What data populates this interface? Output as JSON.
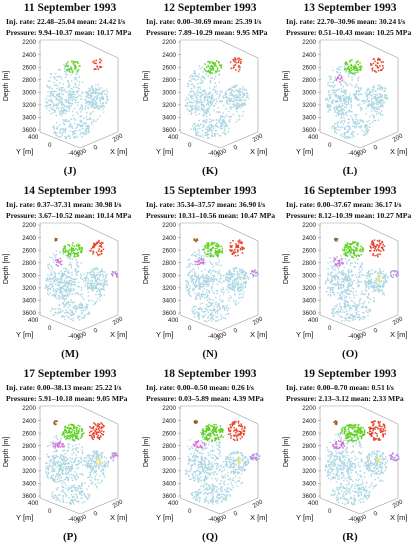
{
  "axis_labels": {
    "depth": "Depth [m]",
    "y": "Y [m]",
    "x": "X [m]"
  },
  "depth_ticks": [
    "2200",
    "2400",
    "2600",
    "2800",
    "3000",
    "3200",
    "3400",
    "3600"
  ],
  "y_ticks": [
    "400",
    "200",
    "0",
    "-200",
    "-400"
  ],
  "x_ticks": [
    "-200",
    "0",
    "200"
  ],
  "rate_label": "Inj. rate:",
  "pressure_label": "Pressure:",
  "mean_label": "mean:",
  "colors": {
    "main_cloud": "#a9d5e3",
    "green_cluster": "#5fd21e",
    "red_cluster": "#e8412a",
    "magenta_cluster": "#d96fd6",
    "purple_cluster": "#b58de0",
    "yellow_cluster": "#f1e95a",
    "orange_cluster": "#9a5b21"
  },
  "panels": [
    {
      "title": "11 September 1993",
      "rate": "22.48–25.04",
      "rate_mean": "24.42 l/s",
      "pressure": "9.94–10.37",
      "pressure_mean": "10.17 MPa",
      "letter": "(J)"
    },
    {
      "title": "12 September 1993",
      "rate": "0.00–30.69",
      "rate_mean": "25.39 l/s",
      "pressure": "7.89–10.29",
      "pressure_mean": "9.95 MPa",
      "letter": "(K)"
    },
    {
      "title": "13 September 1993",
      "rate": "22.70–30.96",
      "rate_mean": "30.24 l/s",
      "pressure": "0.51–10.43",
      "pressure_mean": "10.25 MPa",
      "letter": "(L)"
    },
    {
      "title": "14 September 1993",
      "rate": "0.37–37.31",
      "rate_mean": "30.98 l/s",
      "pressure": "3.67–10.52",
      "pressure_mean": "10.14 MPa",
      "letter": "(M)"
    },
    {
      "title": "15 September 1993",
      "rate": "35.34–37.57",
      "rate_mean": "36.90 l/s",
      "pressure": "10.31–10.56",
      "pressure_mean": "10.47 MPa",
      "letter": "(N)"
    },
    {
      "title": "16 September 1993",
      "rate": "0.00–37.67",
      "rate_mean": "36.17 l/s",
      "pressure": "8.12–10.39",
      "pressure_mean": "10.27 MPa",
      "letter": "(O)"
    },
    {
      "title": "17 September 1993",
      "rate": "0.00–38.13",
      "rate_mean": "25.22 l/s",
      "pressure": "5.91–10.18",
      "pressure_mean": "9.05 MPa",
      "letter": "(P)"
    },
    {
      "title": "18 September 1993",
      "rate": "0.00–0.50",
      "rate_mean": "0.26 l/s",
      "pressure": "0.03–5.89",
      "pressure_mean": "4.39 MPa",
      "letter": "(Q)"
    },
    {
      "title": "19 September 1993",
      "rate": "0.00–0.70",
      "rate_mean": "0.51 l/s",
      "pressure": "2.13–3.12",
      "pressure_mean": "2.33 MPa",
      "letter": "(R)"
    }
  ]
}
